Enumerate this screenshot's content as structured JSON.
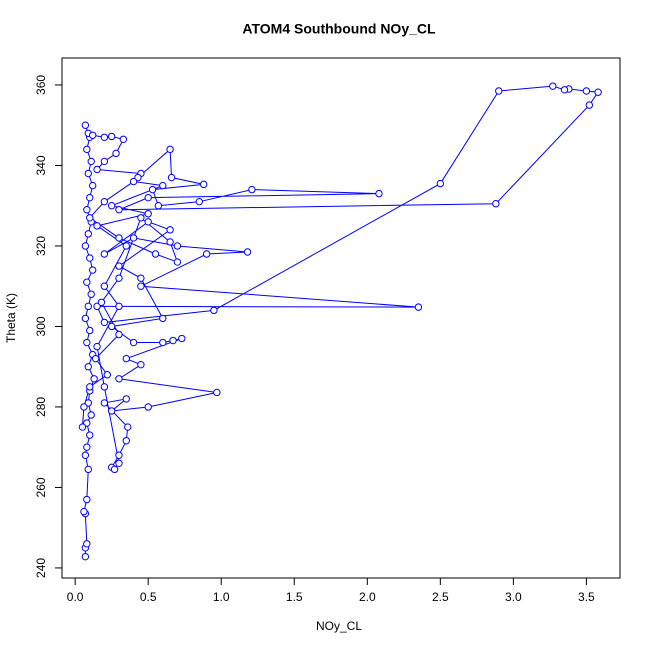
{
  "chart_data": {
    "type": "line",
    "title": "ATOM4 Southbound NOy_CL",
    "x_label": "NOy_CL",
    "y_label": "Theta (K)",
    "series": [
      {
        "color": "#0000ff",
        "x": [
          0.07,
          0.07,
          0.08,
          0.07,
          0.06,
          0.08,
          0.09,
          0.07,
          0.08,
          0.1,
          0.08,
          0.11,
          0.09,
          0.1,
          0.13,
          0.09,
          0.12,
          0.08,
          0.1,
          0.07,
          0.09,
          0.11,
          0.08,
          0.12,
          0.1,
          0.07,
          0.09,
          0.11,
          0.08,
          0.1,
          0.12,
          0.09,
          0.11,
          0.08,
          0.1,
          0.07,
          0.09,
          0.12,
          0.2,
          0.25,
          0.33,
          0.28,
          0.2,
          0.15,
          0.45,
          0.43,
          0.65,
          0.66,
          0.88,
          0.53,
          0.57,
          0.85,
          1.21,
          2.08,
          0.5,
          0.3,
          2.88,
          3.52,
          3.58,
          3.5,
          3.38,
          3.35,
          3.27,
          2.9,
          2.5,
          0.95,
          0.2,
          0.15,
          2.35,
          0.45,
          0.9,
          1.18,
          0.7,
          0.4,
          0.2,
          0.5,
          0.65,
          0.3,
          0.45,
          0.6,
          0.25,
          0.4,
          0.6,
          0.67,
          0.73,
          0.35,
          0.45,
          0.3,
          0.97,
          0.5,
          0.25,
          0.35,
          0.2,
          0.36,
          0.35,
          0.3,
          0.25,
          0.27,
          0.3,
          0.2,
          0.15,
          0.3,
          0.2,
          0.35,
          0.15,
          0.5,
          0.25,
          0.6,
          0.4,
          0.2,
          0.1,
          0.3,
          0.55,
          0.7,
          0.65,
          0.45,
          0.3,
          0.18,
          0.3,
          0.14,
          0.22,
          0.1,
          0.06,
          0.05
        ],
        "values": [
          242.8,
          245,
          246,
          253.5,
          254,
          257,
          264.5,
          268,
          270,
          273,
          276,
          278,
          281,
          284,
          287,
          290,
          293,
          296,
          299,
          302,
          305,
          308,
          311,
          314,
          317,
          320,
          323,
          326,
          329,
          332,
          335,
          338,
          341,
          344,
          347,
          350,
          348,
          347.5,
          347,
          347.2,
          346.5,
          343,
          341,
          339,
          338,
          337,
          344,
          337,
          335.3,
          334,
          330,
          331,
          334,
          333,
          332,
          329,
          330.5,
          355,
          358.2,
          358.5,
          359,
          358.8,
          359.7,
          358.5,
          335.5,
          304,
          301,
          305,
          304.8,
          310,
          318,
          318.5,
          320,
          322,
          318,
          326,
          324,
          315,
          312,
          302,
          300,
          296,
          296,
          296.5,
          297,
          292,
          290.5,
          287,
          283.6,
          280,
          279,
          282,
          281,
          275,
          271.6,
          268,
          265,
          264.5,
          266,
          285,
          295,
          305,
          310,
          320,
          325,
          328,
          330,
          335,
          336,
          331,
          327,
          322,
          318,
          316,
          321,
          327,
          312,
          306,
          298,
          292,
          288,
          285,
          280,
          275
        ]
      }
    ],
    "xlim": [
      -0.09,
      3.73
    ],
    "ylim": [
      237.5,
      366.7
    ],
    "xticks": [
      {
        "value": 0,
        "label": "0.0"
      },
      {
        "value": 0.5,
        "label": "0.5"
      },
      {
        "value": 1,
        "label": "1.0"
      },
      {
        "value": 1.5,
        "label": "1.5"
      },
      {
        "value": 2,
        "label": "2.0"
      },
      {
        "value": 2.5,
        "label": "2.5"
      },
      {
        "value": 3,
        "label": "3.0"
      },
      {
        "value": 3.5,
        "label": "3.5"
      }
    ],
    "yticks": [
      240,
      260,
      280,
      300,
      320,
      340,
      360
    ]
  }
}
